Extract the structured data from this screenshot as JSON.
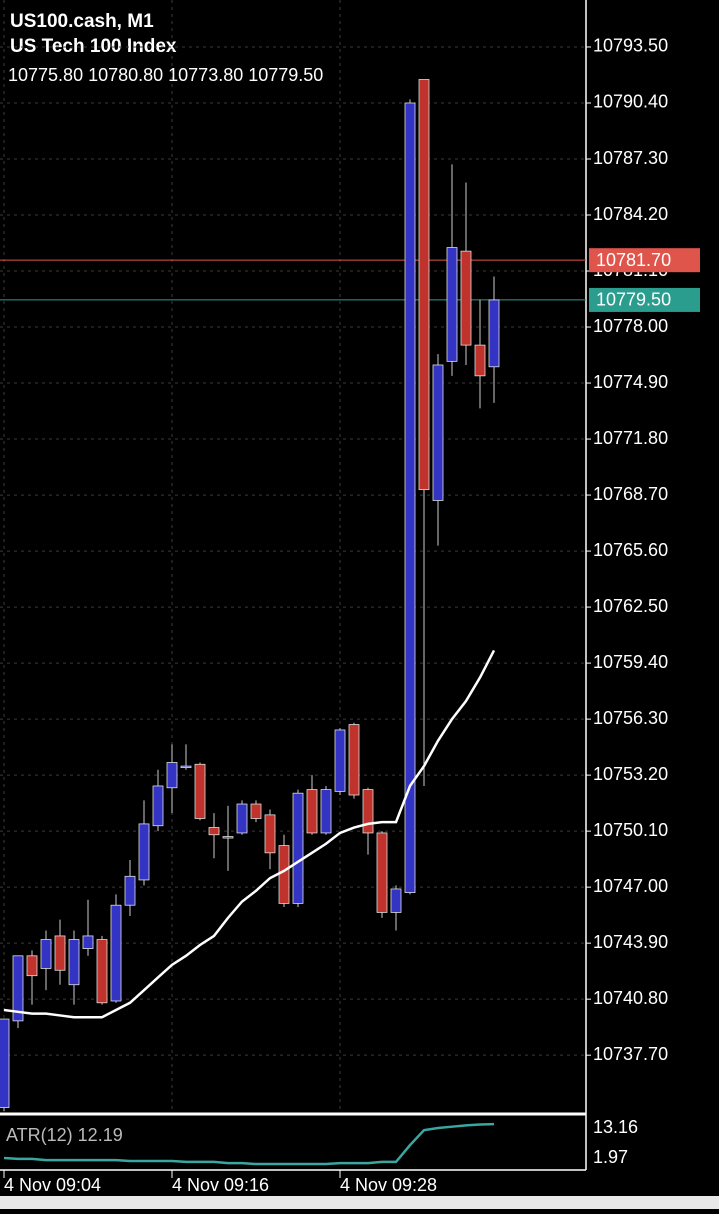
{
  "chart_data": [
    {
      "type": "candlestick",
      "title": "US100.cash, M1",
      "subtitle": "US Tech 100 Index",
      "ohlc_text": "10775.80 10780.80 10773.80 10779.50",
      "categories": [
        "4 Nov 09:04",
        null,
        null,
        null,
        null,
        null,
        null,
        null,
        null,
        null,
        null,
        null,
        "4 Nov 09:16",
        null,
        null,
        null,
        null,
        null,
        null,
        null,
        null,
        null,
        null,
        null,
        "4 Nov 09:28",
        null,
        null,
        null,
        null,
        null,
        null,
        null,
        null,
        null,
        null,
        null
      ],
      "open": [
        10734.8,
        10739.6,
        10743.2,
        10742.5,
        10744.3,
        10741.6,
        10743.6,
        10744.1,
        10740.7,
        10746.0,
        10747.4,
        10750.4,
        10752.5,
        10753.7,
        10753.8,
        10750.3,
        10749.8,
        10750.0,
        10751.6,
        10751.0,
        10749.3,
        10746.1,
        10752.4,
        10750.0,
        10752.3,
        10756.0,
        10752.4,
        10750.0,
        10745.6,
        10746.7,
        10791.7,
        10768.4,
        10776.1,
        10782.2,
        10777.0,
        10775.8
      ],
      "high": [
        10739.7,
        10743.2,
        10743.5,
        10744.6,
        10745.2,
        10744.6,
        10746.3,
        10744.3,
        10746.6,
        10748.5,
        10751.8,
        10753.5,
        10754.9,
        10754.9,
        10753.9,
        10751.1,
        10751.5,
        10751.8,
        10751.8,
        10751.3,
        10749.9,
        10752.4,
        10753.2,
        10752.6,
        10755.8,
        10756.1,
        10752.5,
        10750.1,
        10747.1,
        10790.6,
        10791.7,
        10776.5,
        10787.0,
        10786.0,
        10779.5,
        10780.8
      ],
      "low": [
        10734.6,
        10739.2,
        10740.5,
        10741.3,
        10741.6,
        10740.5,
        10743.2,
        10740.5,
        10740.6,
        10745.4,
        10747.1,
        10750.1,
        10751.1,
        10753.5,
        10750.7,
        10748.6,
        10747.9,
        10749.9,
        10750.6,
        10748.0,
        10745.9,
        10745.9,
        10749.9,
        10749.9,
        10752.1,
        10751.9,
        10748.8,
        10745.3,
        10744.6,
        10746.6,
        10752.6,
        10765.9,
        10775.3,
        10775.9,
        10773.5,
        10773.8
      ],
      "close": [
        10739.7,
        10743.2,
        10742.1,
        10744.1,
        10742.4,
        10744.1,
        10744.3,
        10740.6,
        10746.0,
        10747.6,
        10750.5,
        10752.6,
        10753.9,
        10753.7,
        10750.8,
        10749.9,
        10749.8,
        10751.6,
        10750.8,
        10748.9,
        10746.1,
        10752.2,
        10750.0,
        10752.4,
        10755.7,
        10752.1,
        10750.0,
        10745.6,
        10746.9,
        10790.4,
        10769.0,
        10775.9,
        10782.4,
        10777.0,
        10775.3,
        10779.5
      ],
      "up_color": "#3434c4",
      "down_color": "#c0322c",
      "overlay": {
        "color": "#ffffff",
        "values": [
          10740.2,
          10740.1,
          10740.0,
          10740.0,
          10739.9,
          10739.8,
          10739.8,
          10739.8,
          10740.2,
          10740.6,
          10741.3,
          10742.0,
          10742.7,
          10743.2,
          10743.8,
          10744.3,
          10745.3,
          10746.2,
          10746.8,
          10747.5,
          10747.9,
          10748.4,
          10748.9,
          10749.4,
          10750.0,
          10750.3,
          10750.5,
          10750.6,
          10750.6,
          10752.6,
          10753.7,
          10755.1,
          10756.3,
          10757.3,
          10758.6,
          10760.1
        ]
      },
      "price_lines": [
        {
          "value": 10781.7,
          "label": "10781.70",
          "color": "#e0554b"
        },
        {
          "value": 10779.5,
          "label": "10779.50",
          "color": "#2a9d8f"
        }
      ],
      "ylim": [
        10734.5,
        10796.1
      ],
      "yticks": [
        {
          "value": 10793.5,
          "label": "10793.50"
        },
        {
          "value": 10790.4,
          "label": "10790.40"
        },
        {
          "value": 10787.3,
          "label": "10787.30"
        },
        {
          "value": 10784.2,
          "label": "10784.20"
        },
        {
          "value": 10781.1,
          "label": "10781.10"
        },
        {
          "value": 10778.0,
          "label": "10778.00"
        },
        {
          "value": 10774.9,
          "label": "10774.90"
        },
        {
          "value": 10771.8,
          "label": "10771.80"
        },
        {
          "value": 10768.7,
          "label": "10768.70"
        },
        {
          "value": 10765.6,
          "label": "10765.60"
        },
        {
          "value": 10762.5,
          "label": "10762.50"
        },
        {
          "value": 10759.4,
          "label": "10759.40"
        },
        {
          "value": 10756.3,
          "label": "10756.30"
        },
        {
          "value": 10753.2,
          "label": "10753.20"
        },
        {
          "value": 10750.1,
          "label": "10750.10"
        },
        {
          "value": 10747.0,
          "label": "10747.00"
        },
        {
          "value": 10743.9,
          "label": "10743.90"
        },
        {
          "value": 10740.8,
          "label": "10740.80"
        },
        {
          "value": 10737.7,
          "label": "10737.70"
        }
      ],
      "grid": true
    },
    {
      "type": "line",
      "title": "ATR(12) 12.19",
      "color": "#3aa6a0",
      "values": [
        4.3,
        4.1,
        4.1,
        3.8,
        3.8,
        3.8,
        3.8,
        3.8,
        3.8,
        3.6,
        3.6,
        3.6,
        3.6,
        3.4,
        3.4,
        3.4,
        3.1,
        3.1,
        2.9,
        2.9,
        2.9,
        2.9,
        2.9,
        2.9,
        3.1,
        3.1,
        3.1,
        3.4,
        3.4,
        7.3,
        10.8,
        11.3,
        11.6,
        11.9,
        12.1,
        12.19
      ],
      "ylim": [
        1.97,
        13.16
      ],
      "yticks": [
        13.16,
        1.97
      ]
    }
  ]
}
